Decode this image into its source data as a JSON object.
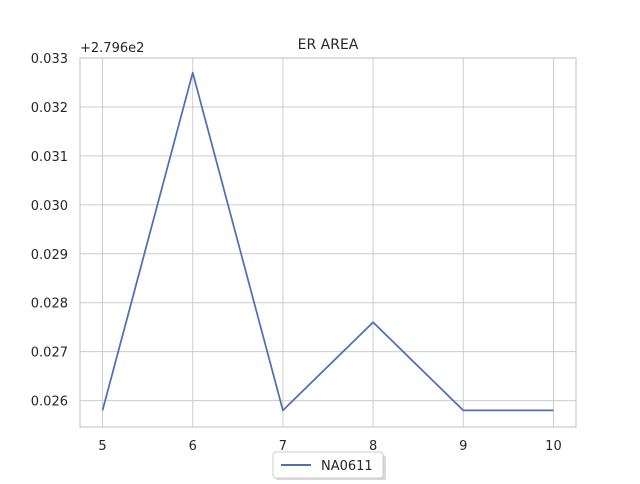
{
  "chart_data": {
    "type": "line",
    "title": "ER AREA",
    "offset_label": "+2.796e2",
    "xlabel": "",
    "ylabel": "",
    "x": [
      5,
      6,
      7,
      8,
      9,
      10
    ],
    "x_ticks": [
      "5",
      "6",
      "7",
      "8",
      "9",
      "10"
    ],
    "y_ticks": [
      "0.026",
      "0.027",
      "0.028",
      "0.029",
      "0.030",
      "0.031",
      "0.032",
      "0.033"
    ],
    "y_tick_values": [
      0.026,
      0.027,
      0.028,
      0.029,
      0.03,
      0.031,
      0.032,
      0.033
    ],
    "xlim": [
      4.75,
      10.25
    ],
    "ylim": [
      0.02546,
      0.033
    ],
    "grid": true,
    "legend_position": "bottom-center",
    "series": [
      {
        "name": "NA0611",
        "color": "#4c72b0",
        "values": [
          0.0258,
          0.0327,
          0.0258,
          0.0276,
          0.0258,
          0.0258
        ]
      }
    ]
  }
}
